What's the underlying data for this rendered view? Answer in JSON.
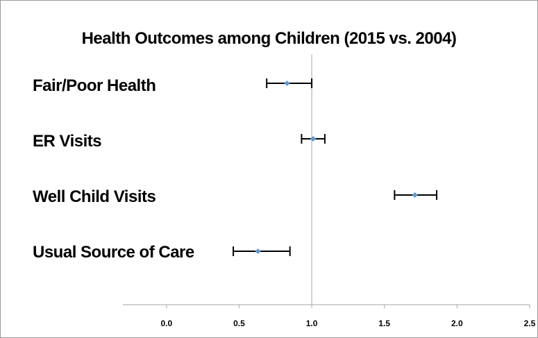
{
  "chart_data": {
    "type": "scatter",
    "title": "Health Outcomes among Children (2015 vs. 2004)",
    "xlabel": "",
    "ylabel": "",
    "categories": [
      "Fair/Poor Health",
      "ER Visits",
      "Well Child Visits",
      "Usual Source of Care"
    ],
    "series": [
      {
        "values": [
          0.83,
          1.01,
          1.71,
          0.63
        ],
        "lower": [
          0.69,
          0.93,
          1.57,
          0.46
        ],
        "upper": [
          1.0,
          1.09,
          1.86,
          0.85
        ]
      }
    ],
    "xlim": [
      -0.3,
      2.5
    ],
    "xticks": [
      "0.0",
      "0.5",
      "1.0",
      "1.5",
      "2.0",
      "2.5"
    ],
    "reference_line": 1.0,
    "grid": false,
    "legend": "none",
    "colors": {
      "marker": "#5b9bd5",
      "errorbar": "#000000",
      "axis": "#a6a6a6"
    }
  }
}
